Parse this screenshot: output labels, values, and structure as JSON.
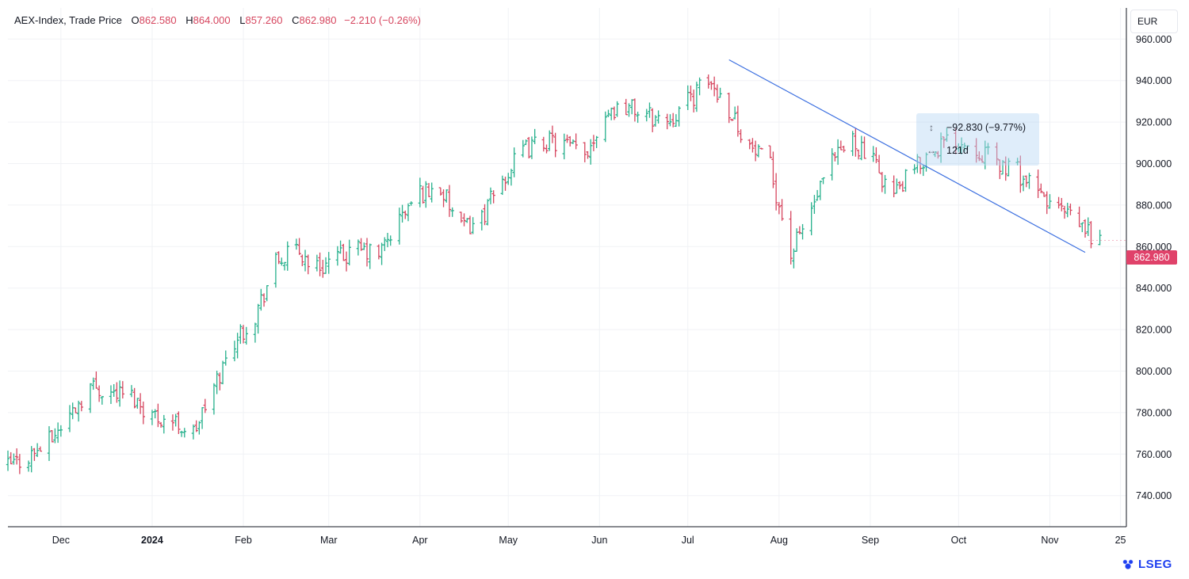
{
  "header": {
    "title": "AEX-Index, Trade Price",
    "open_label": "O",
    "open_value": "862.580",
    "high_label": "H",
    "high_value": "864.000",
    "low_label": "L",
    "low_value": "857.260",
    "close_label": "C",
    "close_value": "862.980",
    "change": "−2.210 (−0.26%)"
  },
  "currency": "EUR",
  "last_price_label": "862.980",
  "measure": {
    "price_change": "−92.830 (−9.77%)",
    "duration": "121d",
    "price_icon": "vertical-range-icon",
    "time_icon": "horizontal-range-icon"
  },
  "logo": {
    "text": "LSEG",
    "icon": "lseg-logo-icon"
  },
  "colors": {
    "up": "#26b08c",
    "down": "#d6455e",
    "trendline": "#3b6fe0",
    "grid": "#f0f2f5",
    "axis": "#131722"
  },
  "chart_data": {
    "type": "ohlc",
    "currency": "EUR",
    "ylim": [
      725,
      975
    ],
    "y_ticks": [
      740,
      760,
      780,
      800,
      820,
      840,
      860,
      880,
      900,
      920,
      940,
      960
    ],
    "y_tick_labels": [
      "740.000",
      "760.000",
      "780.000",
      "800.000",
      "820.000",
      "840.000",
      "860.000",
      "880.000",
      "900.000",
      "920.000",
      "940.000",
      "960.000"
    ],
    "x_ticks": [
      {
        "label": "Dec",
        "date": "2023-12-01"
      },
      {
        "label": "2024",
        "date": "2024-01-01",
        "bold": true
      },
      {
        "label": "Feb",
        "date": "2024-02-01"
      },
      {
        "label": "Mar",
        "date": "2024-03-01"
      },
      {
        "label": "Apr",
        "date": "2024-04-01"
      },
      {
        "label": "May",
        "date": "2024-05-01"
      },
      {
        "label": "Jun",
        "date": "2024-06-01"
      },
      {
        "label": "Jul",
        "date": "2024-07-01"
      },
      {
        "label": "Aug",
        "date": "2024-08-01"
      },
      {
        "label": "Sep",
        "date": "2024-09-01"
      },
      {
        "label": "Oct",
        "date": "2024-10-01"
      },
      {
        "label": "Nov",
        "date": "2024-11-01"
      },
      {
        "label": "25",
        "date": "2024-11-25"
      }
    ],
    "xlim": [
      "2023-11-13",
      "2024-11-27"
    ],
    "close_series": [
      [
        "2023-11-13",
        754
      ],
      [
        "2023-11-20",
        759
      ],
      [
        "2023-11-27",
        766
      ],
      [
        "2023-12-04",
        779
      ],
      [
        "2023-12-11",
        793
      ],
      [
        "2023-12-18",
        790
      ],
      [
        "2023-12-25",
        788
      ],
      [
        "2024-01-01",
        779
      ],
      [
        "2024-01-08",
        776
      ],
      [
        "2024-01-15",
        770
      ],
      [
        "2024-01-22",
        792
      ],
      [
        "2024-01-29",
        815
      ],
      [
        "2024-02-05",
        827
      ],
      [
        "2024-02-12",
        852
      ],
      [
        "2024-02-19",
        858
      ],
      [
        "2024-02-26",
        850
      ],
      [
        "2024-03-04",
        854
      ],
      [
        "2024-03-11",
        858
      ],
      [
        "2024-03-18",
        856
      ],
      [
        "2024-03-25",
        873
      ],
      [
        "2024-04-01",
        886
      ],
      [
        "2024-04-08",
        888
      ],
      [
        "2024-04-15",
        868
      ],
      [
        "2024-04-22",
        874
      ],
      [
        "2024-04-29",
        892
      ],
      [
        "2024-05-06",
        906
      ],
      [
        "2024-05-13",
        911
      ],
      [
        "2024-05-20",
        909
      ],
      [
        "2024-05-27",
        904
      ],
      [
        "2024-06-03",
        925
      ],
      [
        "2024-06-10",
        928
      ],
      [
        "2024-06-17",
        923
      ],
      [
        "2024-06-24",
        921
      ],
      [
        "2024-07-01",
        930
      ],
      [
        "2024-07-08",
        940
      ],
      [
        "2024-07-15",
        927
      ],
      [
        "2024-07-22",
        908
      ],
      [
        "2024-07-29",
        898
      ],
      [
        "2024-08-05",
        856
      ],
      [
        "2024-08-12",
        878
      ],
      [
        "2024-08-19",
        900
      ],
      [
        "2024-08-26",
        912
      ],
      [
        "2024-09-02",
        900
      ],
      [
        "2024-09-09",
        885
      ],
      [
        "2024-09-16",
        897
      ],
      [
        "2024-09-23",
        908
      ],
      [
        "2024-09-30",
        912
      ],
      [
        "2024-10-07",
        908
      ],
      [
        "2024-10-14",
        900
      ],
      [
        "2024-10-21",
        896
      ],
      [
        "2024-10-28",
        885
      ],
      [
        "2024-11-04",
        878
      ],
      [
        "2024-11-11",
        870
      ],
      [
        "2024-11-18",
        862.98
      ]
    ],
    "trendline": {
      "start": {
        "date": "2024-07-15",
        "value": 950
      },
      "end": {
        "date": "2024-11-13",
        "value": 857.2
      },
      "price_change": "−92.830 (−9.77%)",
      "duration": "121d"
    },
    "last_close": 862.98
  }
}
